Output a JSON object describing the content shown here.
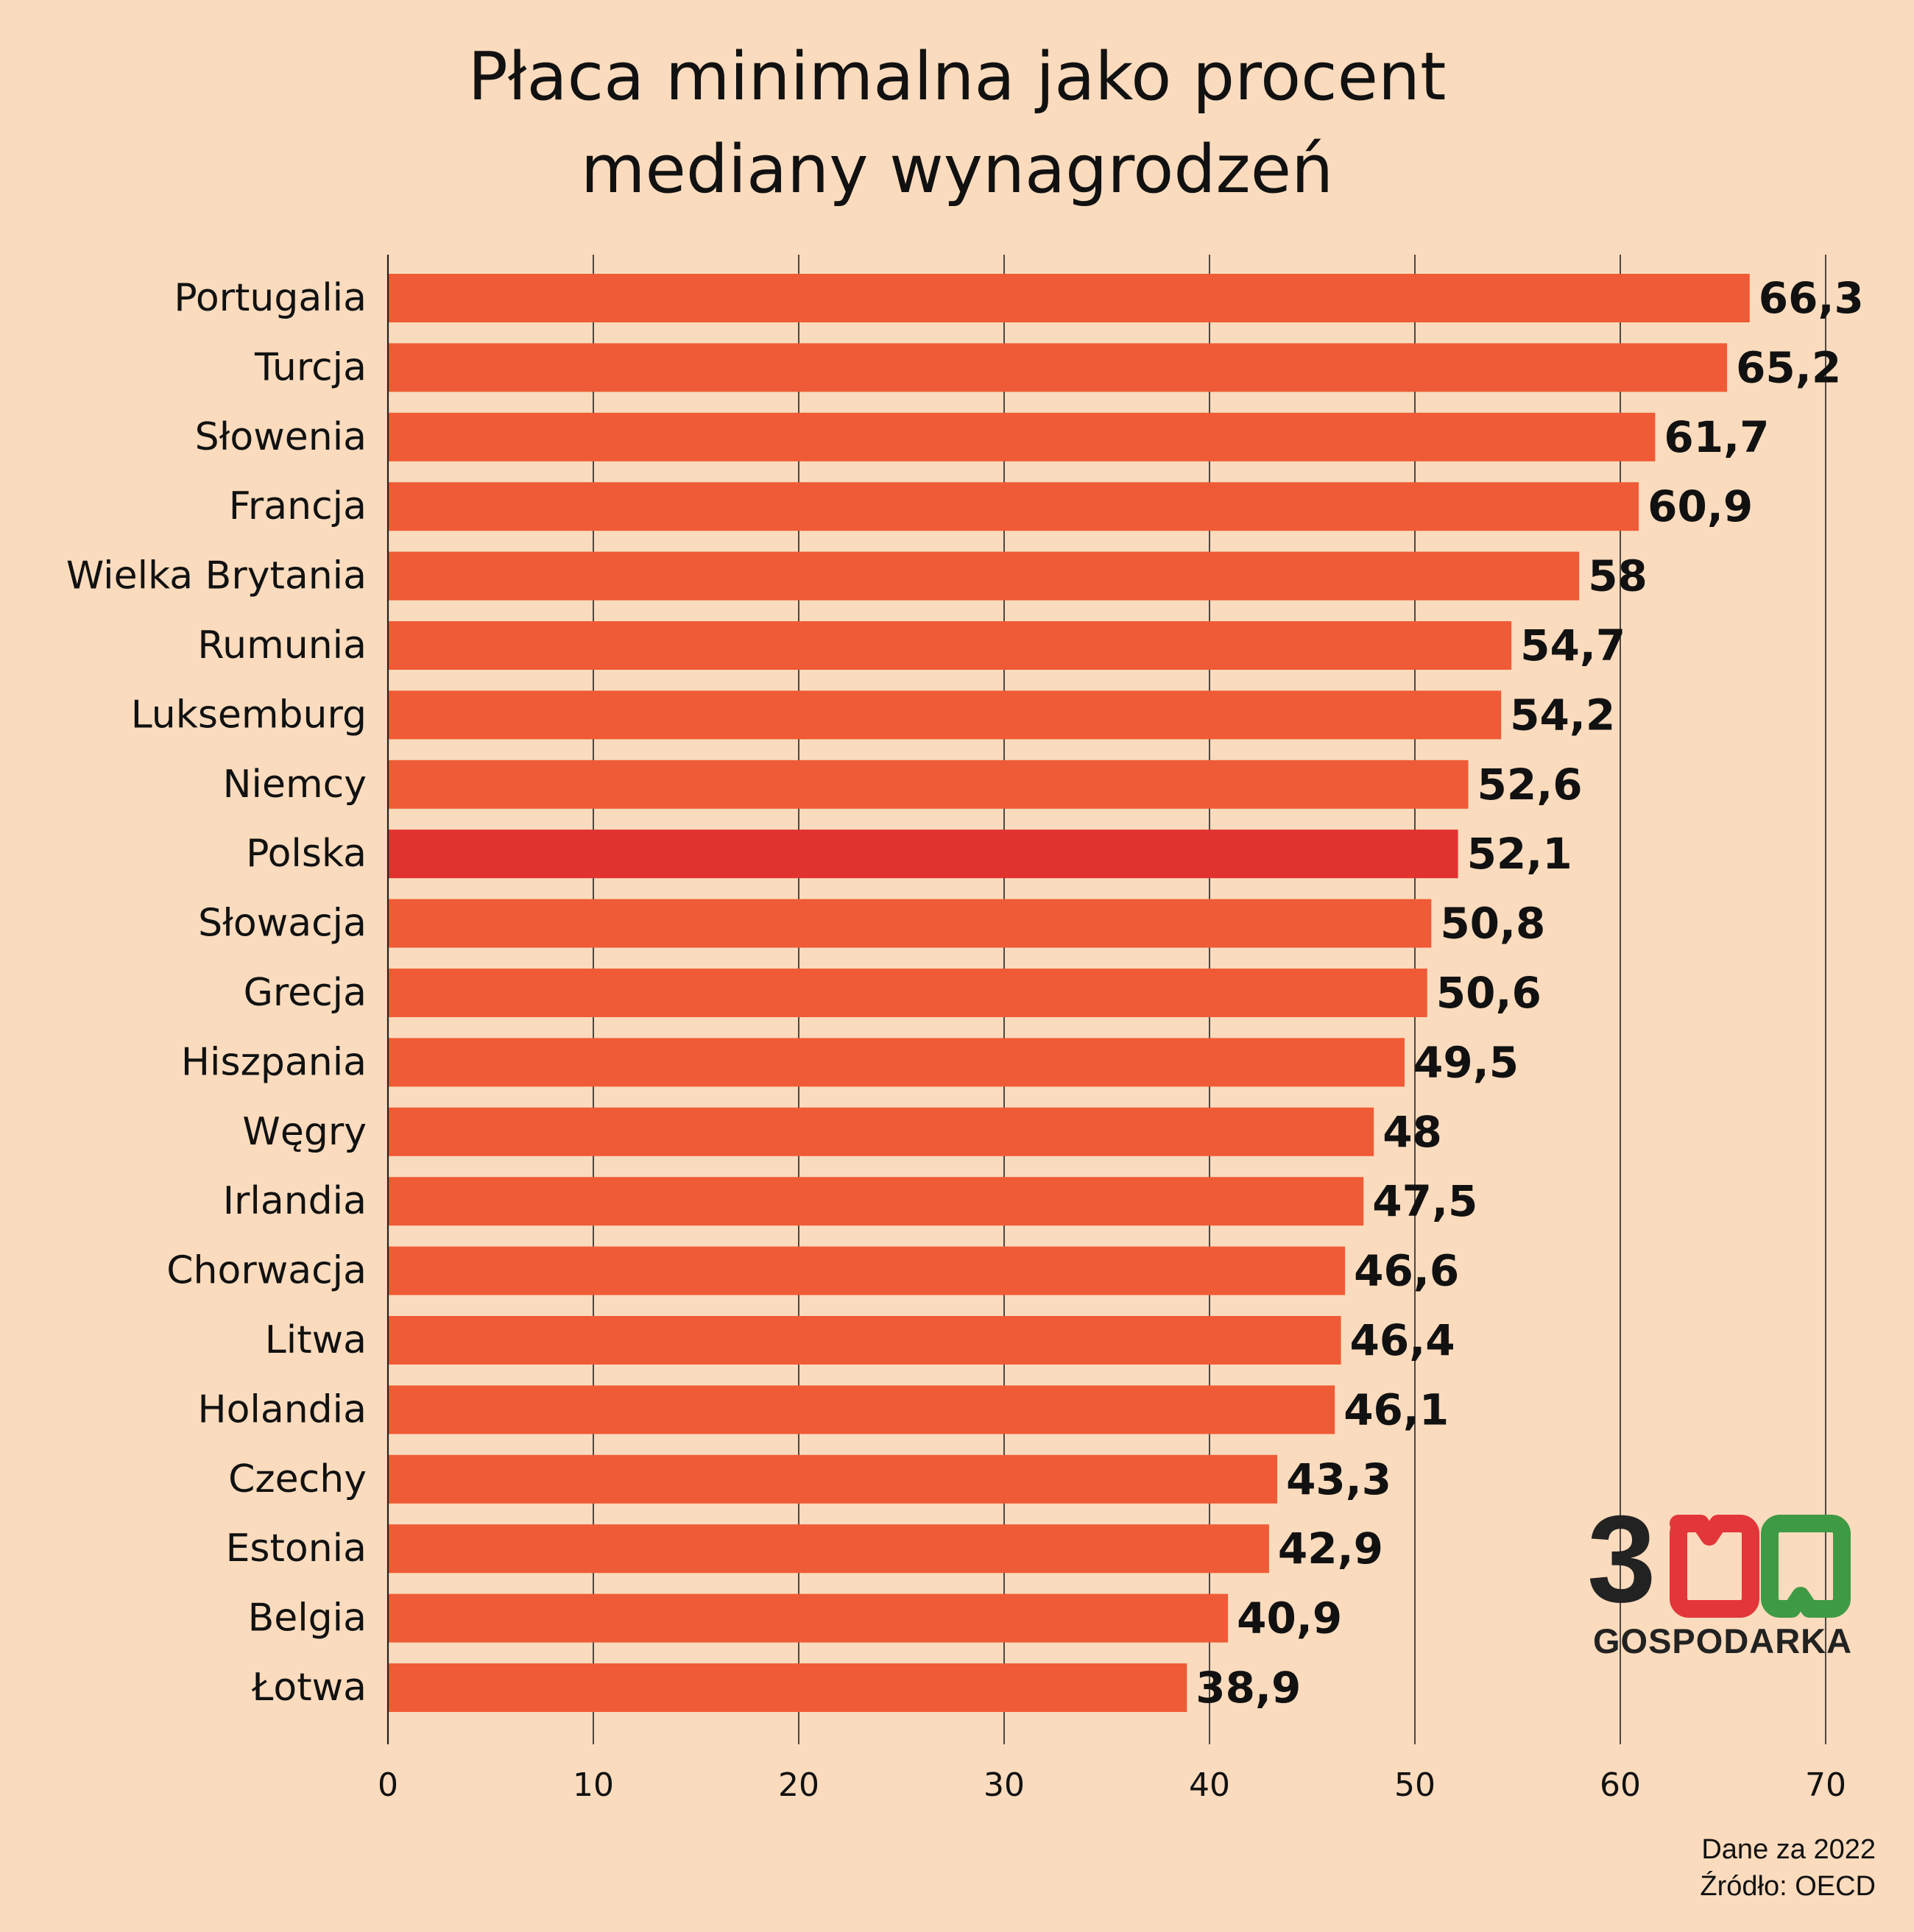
{
  "title_line1": "Płaca minimalna jako procent",
  "title_line2": "mediany wynagrodzeń",
  "footnote": {
    "line1": "Dane za 2022",
    "line2": "Źródło: OECD"
  },
  "logo": {
    "digit": "3",
    "text": "GOSPODARKA",
    "colors": [
      "#222222",
      "#e3363a",
      "#3f9a46"
    ]
  },
  "colors": {
    "background": "#fadbbd",
    "bar": "#ef5b36",
    "highlight": "#e03330",
    "text": "#111111",
    "grid": "#222222"
  },
  "chart_data": {
    "type": "bar",
    "orientation": "horizontal",
    "title": "Płaca minimalna jako procent mediany wynagrodzeń",
    "categories": [
      "Portugalia",
      "Turcja",
      "Słowenia",
      "Francja",
      "Wielka Brytania",
      "Rumunia",
      "Luksemburg",
      "Niemcy",
      "Polska",
      "Słowacja",
      "Grecja",
      "Hiszpania",
      "Węgry",
      "Irlandia",
      "Chorwacja",
      "Litwa",
      "Holandia",
      "Czechy",
      "Estonia",
      "Belgia",
      "Łotwa"
    ],
    "values": [
      66.3,
      65.2,
      61.7,
      60.9,
      58,
      54.7,
      54.2,
      52.6,
      52.1,
      50.8,
      50.6,
      49.5,
      48,
      47.5,
      46.6,
      46.4,
      46.1,
      43.3,
      42.9,
      40.9,
      38.9
    ],
    "value_labels": [
      "66,3",
      "65,2",
      "61,7",
      "60,9",
      "58",
      "54,7",
      "54,2",
      "52,6",
      "52,1",
      "50,8",
      "50,6",
      "49,5",
      "48",
      "47,5",
      "46,6",
      "46,4",
      "46,1",
      "43,3",
      "42,9",
      "40,9",
      "38,9"
    ],
    "highlight": "Polska",
    "xlim": [
      0,
      70
    ],
    "xticks": [
      0,
      10,
      20,
      30,
      40,
      50,
      60,
      70
    ],
    "grid": true,
    "xlabel": "",
    "ylabel": ""
  }
}
